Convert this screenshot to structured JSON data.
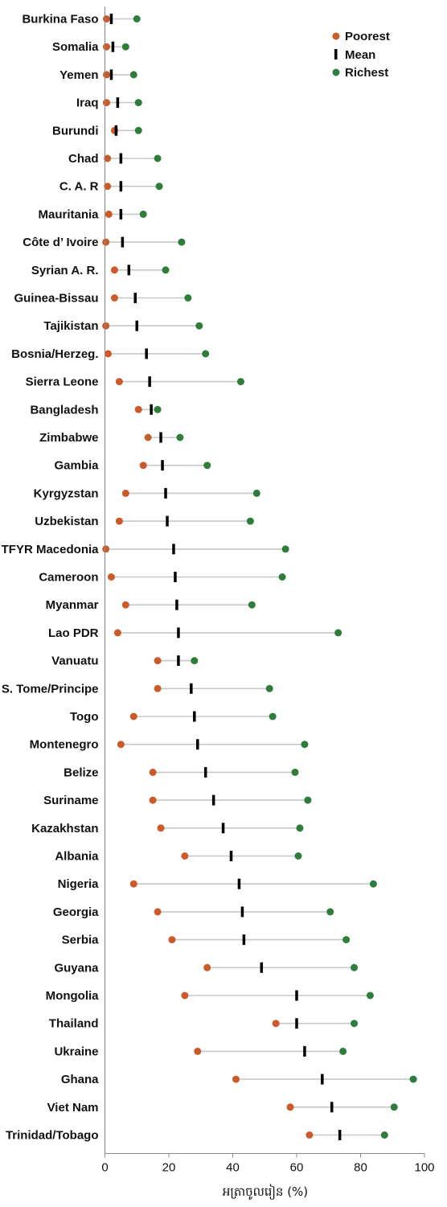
{
  "chart_data": {
    "type": "dot-range",
    "title": "",
    "xlabel": "អត្រាចូលរៀន (%)",
    "ylabel": "",
    "xlim": [
      0,
      100
    ],
    "xticks": [
      0,
      20,
      40,
      60,
      80,
      100
    ],
    "grid": false,
    "legend_position": "top-right",
    "series": [
      {
        "name": "Poorest",
        "color": "#cc5a28",
        "marker": "circle"
      },
      {
        "name": "Mean",
        "color": "#000000",
        "marker": "bar"
      },
      {
        "name": "Richest",
        "color": "#2e7d3a",
        "marker": "circle"
      }
    ],
    "connector_color": "#c8c8c8",
    "categories": [
      "Burkina Faso",
      "Somalia",
      "Yemen",
      "Iraq",
      "Burundi",
      "Chad",
      "C. A. R",
      "Mauritania",
      "Côte d’ Ivoire",
      "Syrian A. R.",
      "Guinea-Bissau",
      "Tajikistan",
      "Bosnia/Herzeg.",
      "Sierra Leone",
      "Bangladesh",
      "Zimbabwe",
      "Gambia",
      "Kyrgyzstan",
      "Uzbekistan",
      "TFYR Macedonia",
      "Cameroon",
      "Myanmar",
      "Lao PDR",
      "Vanuatu",
      "S. Tome/Principe",
      "Togo",
      "Montenegro",
      "Belize",
      "Suriname",
      "Kazakhstan",
      "Albania",
      "Nigeria",
      "Georgia",
      "Serbia",
      "Guyana",
      "Mongolia",
      "Thailand",
      "Ukraine",
      "Ghana",
      "Viet Nam",
      "Trinidad/Tobago"
    ],
    "poorest": [
      0.5,
      0.5,
      0.5,
      0.5,
      3,
      0.8,
      0.8,
      1.2,
      0.3,
      3,
      3,
      0.3,
      1,
      4.5,
      10.5,
      13.5,
      12,
      6.5,
      4.5,
      0.3,
      2,
      6.5,
      4,
      16.5,
      16.5,
      9,
      5,
      15,
      15,
      17.5,
      25,
      9,
      16.5,
      21,
      32,
      25,
      53.5,
      29,
      41,
      58,
      64
    ],
    "mean": [
      2,
      2.5,
      2,
      4,
      3.5,
      5,
      5,
      5,
      5.5,
      7.5,
      9.5,
      10,
      13,
      14,
      14.5,
      17.5,
      18,
      19,
      19.5,
      21.5,
      22,
      22.5,
      23,
      23,
      27,
      28,
      29,
      31.5,
      34,
      37,
      39.5,
      42,
      43,
      43.5,
      49,
      60,
      60,
      62.5,
      68,
      71,
      73.5
    ],
    "richest": [
      10,
      6.5,
      9,
      10.5,
      10.5,
      16.5,
      17,
      12,
      24,
      19,
      26,
      29.5,
      31.5,
      42.5,
      16.5,
      23.5,
      32,
      47.5,
      45.5,
      56.5,
      55.5,
      46,
      73,
      28,
      51.5,
      52.5,
      62.5,
      59.5,
      63.5,
      61,
      60.5,
      84,
      70.5,
      75.5,
      78,
      83,
      78,
      74.5,
      96.5,
      90.5,
      87.5
    ]
  }
}
